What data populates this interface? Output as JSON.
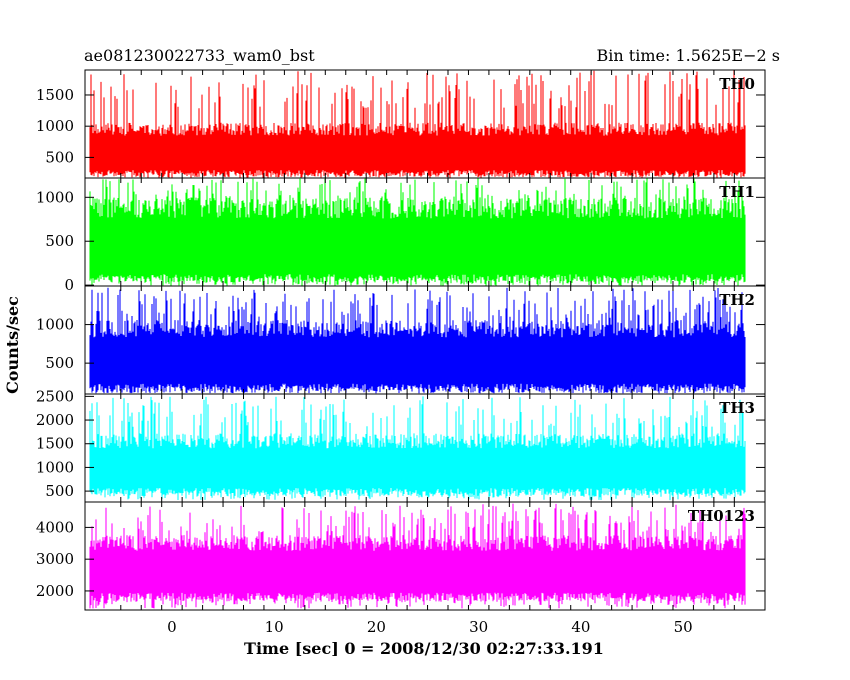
{
  "header": {
    "title": "ae081230022733_wam0_bst",
    "bin_time": "Bin time: 1.5625E−2 s"
  },
  "chart_data": {
    "type": "line",
    "title": "ae081230022733_wam0_bst",
    "subtitle": "Bin time: 1.5625E−2 s",
    "xlabel": "Time [sec] 0 = 2008/12/30 02:27:33.191",
    "ylabel": "Counts/sec",
    "xlim": [
      -8.5,
      58.0
    ],
    "data_x_range": [
      -8.0,
      56.0
    ],
    "x_ticks": [
      0,
      10,
      20,
      30,
      40,
      50
    ],
    "x_tick_labels": [
      "0",
      "10",
      "20",
      "30",
      "40",
      "50"
    ],
    "grid": false,
    "legend": "none",
    "panels": [
      {
        "name": "TH0",
        "color": "#ff0000",
        "ylim": [
          170,
          1900
        ],
        "ticks": [
          500,
          1000,
          1500
        ],
        "tick_labels": [
          "500",
          "1000",
          "1500"
        ],
        "band": [
          320,
          780
        ],
        "spike_max": 1900,
        "dip_min": 170
      },
      {
        "name": "TH1",
        "color": "#00ff00",
        "ylim": [
          -10,
          1220
        ],
        "ticks": [
          0,
          500,
          1000
        ],
        "tick_labels": [
          "0",
          "500",
          "1000"
        ],
        "band": [
          150,
          680
        ],
        "spike_max": 1220,
        "dip_min": 30
      },
      {
        "name": "TH2",
        "color": "#0000ff",
        "ylim": [
          100,
          1500
        ],
        "ticks": [
          500,
          1000
        ],
        "tick_labels": [
          "500",
          "1000"
        ],
        "band": [
          260,
          760
        ],
        "spike_max": 1480,
        "dip_min": 110
      },
      {
        "name": "TH3",
        "color": "#00ffff",
        "ylim": [
          270,
          2550
        ],
        "ticks": [
          500,
          1000,
          1500,
          2000,
          2500
        ],
        "tick_labels": [
          "500",
          "1000",
          "1500",
          "2000",
          "2500"
        ],
        "band": [
          600,
          1300
        ],
        "spike_max": 2500,
        "dip_min": 310
      },
      {
        "name": "TH0123",
        "color": "#ff00ff",
        "ylim": [
          1400,
          4800
        ],
        "ticks": [
          2000,
          3000,
          4000
        ],
        "tick_labels": [
          "2000",
          "3000",
          "4000"
        ],
        "band": [
          2000,
          3100
        ],
        "spike_max": 4750,
        "dip_min": 1450
      }
    ]
  }
}
